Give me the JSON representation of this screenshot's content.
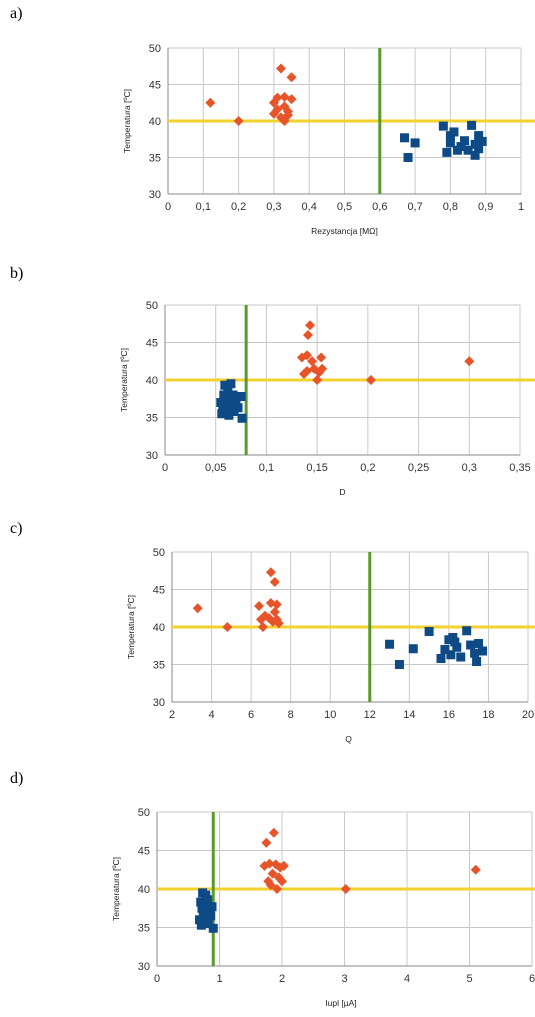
{
  "panels": [
    {
      "label": "a)"
    },
    {
      "label": "b)"
    },
    {
      "label": "c)"
    },
    {
      "label": "d)"
    }
  ],
  "colors": {
    "orange_series": "#e8542a",
    "blue_series": "#0d4a86",
    "threshold_horizontal": "#f2d22e",
    "threshold_vertical": "#5a9a2a",
    "grid": "#c8c8c8"
  },
  "chart_data": [
    {
      "type": "scatter",
      "xlabel": "Rezystancja [MΩ]",
      "ylabel": "Temperatura [ºC]",
      "xlim": [
        0,
        1
      ],
      "ylim": [
        30,
        50
      ],
      "xticks": [
        "0",
        "0,1",
        "0,2",
        "0,3",
        "0,4",
        "0,5",
        "0,6",
        "0,7",
        "0,8",
        "0,9",
        "1"
      ],
      "yticks": [
        "30",
        "35",
        "40",
        "45",
        "50"
      ],
      "grid": true,
      "threshold_y": 40,
      "threshold_x": 0.6,
      "series": [
        {
          "marker": "diamond",
          "color": "#e8542a",
          "points": [
            [
              0.12,
              42.5
            ],
            [
              0.2,
              40
            ],
            [
              0.3,
              41
            ],
            [
              0.3,
              42.5
            ],
            [
              0.31,
              43.2
            ],
            [
              0.32,
              40.5
            ],
            [
              0.33,
              42
            ],
            [
              0.32,
              47.2
            ],
            [
              0.33,
              43.3
            ],
            [
              0.34,
              41.3
            ],
            [
              0.34,
              40.8
            ],
            [
              0.35,
              46
            ],
            [
              0.35,
              43
            ],
            [
              0.31,
              41.6
            ],
            [
              0.33,
              40
            ]
          ]
        },
        {
          "marker": "square",
          "color": "#0d4a86",
          "points": [
            [
              0.67,
              37.7
            ],
            [
              0.68,
              35
            ],
            [
              0.7,
              37
            ],
            [
              0.78,
              39.3
            ],
            [
              0.79,
              35.7
            ],
            [
              0.8,
              38
            ],
            [
              0.8,
              37
            ],
            [
              0.81,
              38.5
            ],
            [
              0.82,
              36
            ],
            [
              0.83,
              36.5
            ],
            [
              0.84,
              37.3
            ],
            [
              0.85,
              36
            ],
            [
              0.86,
              39.4
            ],
            [
              0.87,
              35.3
            ],
            [
              0.88,
              38
            ],
            [
              0.88,
              36.2
            ],
            [
              0.89,
              37.2
            ],
            [
              0.87,
              36.8
            ]
          ]
        }
      ]
    },
    {
      "type": "scatter",
      "xlabel": "D",
      "ylabel": "Temperatura [ºC]",
      "xlim": [
        0,
        0.35
      ],
      "ylim": [
        30,
        50
      ],
      "xticks": [
        "0",
        "0,05",
        "0,1",
        "0,15",
        "0,2",
        "0,25",
        "0,3",
        "0,35"
      ],
      "yticks": [
        "30",
        "35",
        "40",
        "45",
        "50"
      ],
      "grid": true,
      "threshold_y": 40,
      "threshold_x": 0.08,
      "series": [
        {
          "marker": "diamond",
          "color": "#e8542a",
          "points": [
            [
              0.135,
              43
            ],
            [
              0.137,
              40.8
            ],
            [
              0.14,
              43.3
            ],
            [
              0.14,
              41.2
            ],
            [
              0.141,
              46
            ],
            [
              0.143,
              47.3
            ],
            [
              0.145,
              42.5
            ],
            [
              0.147,
              41.5
            ],
            [
              0.15,
              40
            ],
            [
              0.152,
              41
            ],
            [
              0.154,
              43
            ],
            [
              0.155,
              41.5
            ],
            [
              0.203,
              40
            ],
            [
              0.3,
              42.5
            ]
          ]
        },
        {
          "marker": "square",
          "color": "#0d4a86",
          "points": [
            [
              0.055,
              37
            ],
            [
              0.056,
              35.5
            ],
            [
              0.057,
              36.5
            ],
            [
              0.058,
              38
            ],
            [
              0.059,
              39.3
            ],
            [
              0.06,
              37.5
            ],
            [
              0.061,
              36
            ],
            [
              0.062,
              38.5
            ],
            [
              0.063,
              35.3
            ],
            [
              0.064,
              37.2
            ],
            [
              0.065,
              39.5
            ],
            [
              0.066,
              36.5
            ],
            [
              0.067,
              38
            ],
            [
              0.068,
              35.8
            ],
            [
              0.07,
              37
            ],
            [
              0.072,
              36.3
            ],
            [
              0.075,
              37.8
            ],
            [
              0.076,
              34.9
            ]
          ]
        }
      ]
    },
    {
      "type": "scatter",
      "xlabel": "Q",
      "ylabel": "Temperatura [ºC]",
      "xlim": [
        2,
        20
      ],
      "ylim": [
        30,
        50
      ],
      "xticks": [
        "2",
        "4",
        "6",
        "8",
        "10",
        "12",
        "14",
        "16",
        "18",
        "20"
      ],
      "yticks": [
        "30",
        "35",
        "40",
        "45",
        "50"
      ],
      "grid": true,
      "threshold_y": 40,
      "threshold_x": 12,
      "series": [
        {
          "marker": "diamond",
          "color": "#e8542a",
          "points": [
            [
              3.3,
              42.5
            ],
            [
              4.8,
              40
            ],
            [
              6.4,
              42.8
            ],
            [
              6.5,
              41
            ],
            [
              6.6,
              40
            ],
            [
              6.7,
              41.5
            ],
            [
              6.9,
              41.2
            ],
            [
              7,
              47.3
            ],
            [
              7,
              43.2
            ],
            [
              7.1,
              40.7
            ],
            [
              7.2,
              46
            ],
            [
              7.2,
              42
            ],
            [
              7.3,
              43
            ],
            [
              7.3,
              41
            ],
            [
              7.4,
              40.5
            ]
          ]
        },
        {
          "marker": "square",
          "color": "#0d4a86",
          "points": [
            [
              13,
              37.7
            ],
            [
              13.5,
              35
            ],
            [
              14.2,
              37.1
            ],
            [
              15,
              39.4
            ],
            [
              15.6,
              35.8
            ],
            [
              15.8,
              37
            ],
            [
              16,
              38.3
            ],
            [
              16.1,
              36.3
            ],
            [
              16.3,
              38
            ],
            [
              16.4,
              37.3
            ],
            [
              16.6,
              36
            ],
            [
              16.9,
              39.5
            ],
            [
              17.1,
              37.6
            ],
            [
              17.3,
              36.5
            ],
            [
              17.4,
              35.4
            ],
            [
              17.5,
              37.8
            ],
            [
              17.7,
              36.8
            ],
            [
              16.2,
              38.6
            ]
          ]
        }
      ]
    },
    {
      "type": "scatter",
      "xlabel": "Iupl [µA]",
      "ylabel": "Temperatura [ºC]",
      "xlim": [
        0,
        6
      ],
      "ylim": [
        30,
        50
      ],
      "xticks": [
        "0",
        "1",
        "2",
        "3",
        "4",
        "5",
        "6"
      ],
      "yticks": [
        "30",
        "35",
        "40",
        "45",
        "50"
      ],
      "grid": true,
      "threshold_y": 40,
      "threshold_x": 0.9,
      "series": [
        {
          "marker": "diamond",
          "color": "#e8542a",
          "points": [
            [
              1.72,
              43
            ],
            [
              1.75,
              46
            ],
            [
              1.78,
              41
            ],
            [
              1.8,
              43.3
            ],
            [
              1.82,
              40.5
            ],
            [
              1.85,
              42
            ],
            [
              1.87,
              47.3
            ],
            [
              1.9,
              43.2
            ],
            [
              1.92,
              40
            ],
            [
              1.95,
              41.5
            ],
            [
              1.97,
              42.8
            ],
            [
              2,
              41
            ],
            [
              2.03,
              43
            ],
            [
              3.02,
              40
            ],
            [
              5.1,
              42.5
            ]
          ]
        },
        {
          "marker": "square",
          "color": "#0d4a86",
          "points": [
            [
              0.68,
              36
            ],
            [
              0.7,
              38.3
            ],
            [
              0.71,
              35.3
            ],
            [
              0.72,
              37.5
            ],
            [
              0.73,
              39.5
            ],
            [
              0.74,
              36.8
            ],
            [
              0.75,
              38
            ],
            [
              0.76,
              35.8
            ],
            [
              0.77,
              37.2
            ],
            [
              0.78,
              39.2
            ],
            [
              0.79,
              36.3
            ],
            [
              0.8,
              37.8
            ],
            [
              0.82,
              35.5
            ],
            [
              0.84,
              37
            ],
            [
              0.86,
              36.5
            ],
            [
              0.88,
              37.7
            ],
            [
              0.9,
              34.9
            ],
            [
              0.81,
              38.6
            ]
          ]
        }
      ]
    }
  ]
}
